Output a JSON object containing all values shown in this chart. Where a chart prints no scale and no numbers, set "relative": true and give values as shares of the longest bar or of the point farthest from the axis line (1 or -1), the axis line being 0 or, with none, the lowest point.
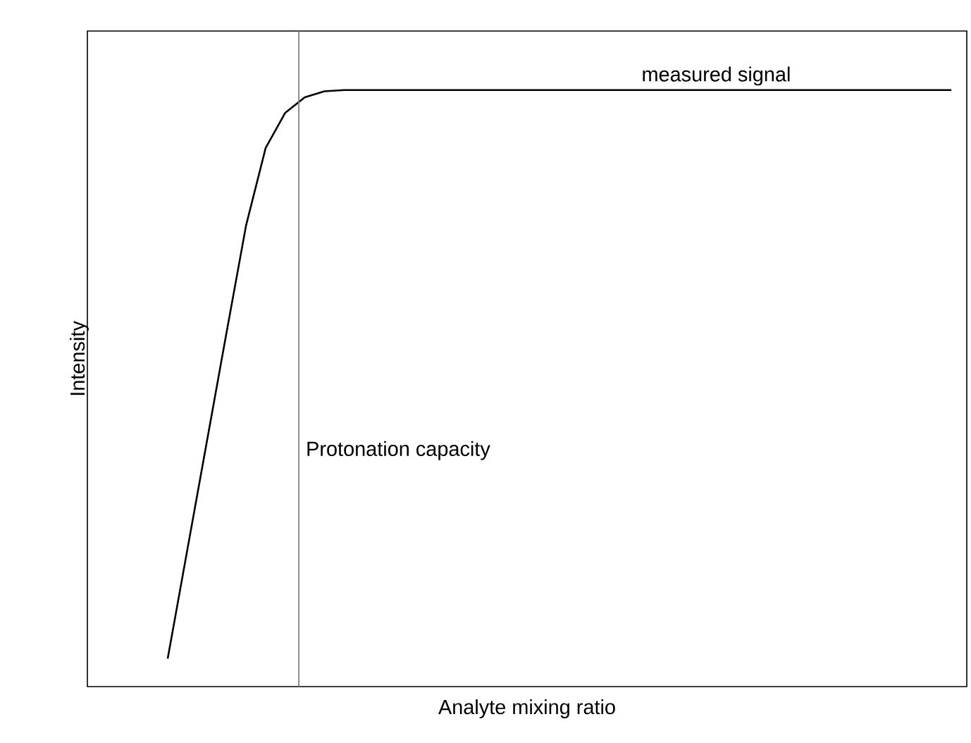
{
  "chart_data": {
    "type": "line",
    "xlabel": "Analyte mixing ratio",
    "ylabel": "Intensity",
    "relative": true,
    "legend": false,
    "marker": "none",
    "line_style": "solid",
    "categories": [
      null,
      null,
      null,
      null,
      null,
      null,
      null,
      null,
      null,
      null,
      null,
      null,
      null,
      null,
      null,
      null,
      null,
      null,
      null,
      null,
      null,
      null,
      null,
      null,
      null,
      null,
      null,
      null,
      null,
      null,
      null,
      null,
      null,
      null,
      null,
      null,
      null,
      null,
      null,
      null,
      null
    ],
    "series": [
      {
        "name": "measured signal",
        "color": "#000000",
        "values": [
          0.047,
          0.229,
          0.411,
          0.593,
          0.773,
          0.903,
          0.962,
          0.988,
          0.998,
          1,
          1,
          1,
          1,
          1,
          1,
          1,
          1,
          1,
          1,
          1,
          1,
          1,
          1,
          1,
          1,
          1,
          1,
          1,
          1,
          1,
          1,
          1,
          1,
          1,
          1,
          1,
          1,
          1,
          1,
          1,
          1
        ]
      }
    ],
    "annotations": [
      "Protonation capacity"
    ]
  }
}
